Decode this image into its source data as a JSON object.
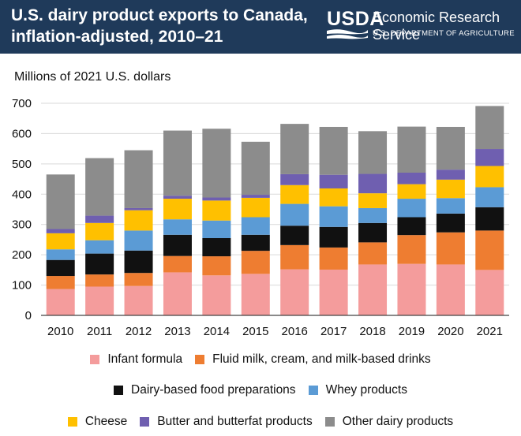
{
  "header": {
    "title_line1": "U.S. dairy product exports to Canada,",
    "title_line2": "inflation-adjusted, 2010–21",
    "logo_text": "USDA",
    "agency": "Economic Research Service",
    "department": "U.S. DEPARTMENT OF AGRICULTURE",
    "background_color": "#1f3a5a"
  },
  "chart_data": {
    "type": "bar",
    "stacked": true,
    "title": "U.S. dairy product exports to Canada, inflation-adjusted, 2010–21",
    "ylabel": "Millions of 2021 U.S. dollars",
    "xlabel": "",
    "ylim": [
      0,
      700
    ],
    "yticks": [
      0,
      100,
      200,
      300,
      400,
      500,
      600,
      700
    ],
    "categories": [
      "2010",
      "2011",
      "2012",
      "2013",
      "2014",
      "2015",
      "2016",
      "2017",
      "2018",
      "2019",
      "2020",
      "2021"
    ],
    "series": [
      {
        "name": "Infant formula",
        "color": "#f49c9c",
        "values": [
          87,
          95,
          97,
          142,
          132,
          137,
          152,
          151,
          168,
          170,
          168,
          150
        ]
      },
      {
        "name": "Fluid milk, cream, and milk-based drinks",
        "color": "#ee7d31",
        "values": [
          43,
          40,
          43,
          54,
          63,
          76,
          80,
          73,
          73,
          95,
          106,
          130
        ]
      },
      {
        "name": "Dairy-based food preparations",
        "color": "#111111",
        "values": [
          53,
          69,
          74,
          70,
          60,
          53,
          64,
          68,
          64,
          59,
          62,
          77
        ]
      },
      {
        "name": "Whey products",
        "color": "#5b9bd5",
        "values": [
          35,
          44,
          66,
          51,
          58,
          58,
          72,
          68,
          49,
          61,
          51,
          66
        ]
      },
      {
        "name": "Cheese",
        "color": "#ffc000",
        "values": [
          53,
          57,
          67,
          68,
          66,
          64,
          62,
          59,
          49,
          48,
          61,
          70
        ]
      },
      {
        "name": "Butter and butterfat products",
        "color": "#6f5fb0",
        "values": [
          14,
          24,
          7,
          10,
          10,
          10,
          36,
          45,
          64,
          38,
          33,
          56
        ]
      },
      {
        "name": "Other dairy products",
        "color": "#8c8c8c",
        "values": [
          180,
          190,
          191,
          215,
          227,
          175,
          166,
          158,
          141,
          152,
          141,
          142
        ]
      }
    ],
    "legend_position": "bottom",
    "grid": true
  }
}
